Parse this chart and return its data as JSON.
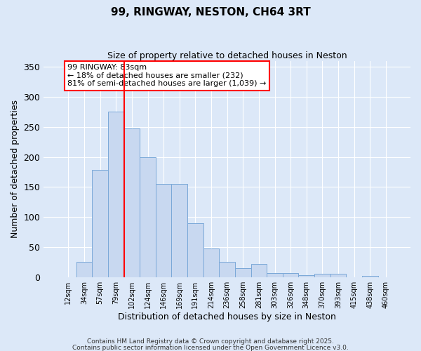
{
  "title": "99, RINGWAY, NESTON, CH64 3RT",
  "subtitle": "Size of property relative to detached houses in Neston",
  "xlabel": "Distribution of detached houses by size in Neston",
  "ylabel": "Number of detached properties",
  "bar_color": "#c8d8f0",
  "bar_edge_color": "#7aa8d8",
  "background_color": "#dce8f8",
  "grid_color": "white",
  "bin_labels": [
    "12sqm",
    "34sqm",
    "57sqm",
    "79sqm",
    "102sqm",
    "124sqm",
    "146sqm",
    "169sqm",
    "191sqm",
    "214sqm",
    "236sqm",
    "258sqm",
    "281sqm",
    "303sqm",
    "326sqm",
    "348sqm",
    "370sqm",
    "393sqm",
    "415sqm",
    "438sqm",
    "460sqm"
  ],
  "bar_values": [
    0,
    25,
    178,
    275,
    248,
    200,
    155,
    155,
    90,
    48,
    25,
    15,
    22,
    7,
    7,
    3,
    5,
    5,
    0,
    2,
    0
  ],
  "vline_color": "red",
  "annotation_title": "99 RINGWAY: 83sqm",
  "annotation_line1": "← 18% of detached houses are smaller (232)",
  "annotation_line2": "81% of semi-detached houses are larger (1,039) →",
  "annotation_box_color": "red",
  "ylim": [
    0,
    360
  ],
  "yticks": [
    0,
    50,
    100,
    150,
    200,
    250,
    300,
    350
  ],
  "footnote1": "Contains HM Land Registry data © Crown copyright and database right 2025.",
  "footnote2": "Contains public sector information licensed under the Open Government Licence v3.0."
}
